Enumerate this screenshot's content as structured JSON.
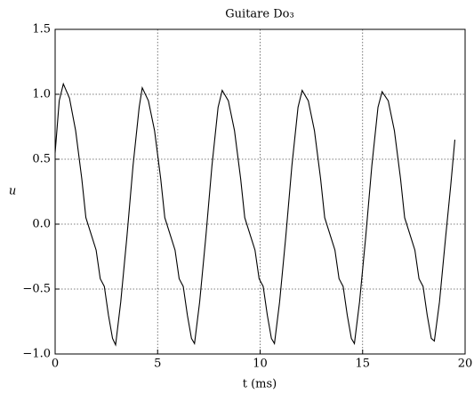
{
  "chart_data": {
    "type": "line",
    "title": "Guitare Do₃",
    "x_label": "t (ms)",
    "y_label": "u",
    "x": [
      0,
      0.2,
      0.4,
      0.7,
      1.0,
      1.3,
      1.5,
      1.7,
      2.0,
      2.2,
      2.4,
      2.6,
      2.8,
      2.95,
      3.2,
      3.5,
      3.8,
      4.1,
      4.25,
      4.55,
      4.85,
      5.15,
      5.35,
      5.55,
      5.85,
      6.05,
      6.25,
      6.45,
      6.65,
      6.8,
      7.05,
      7.35,
      7.65,
      7.95,
      8.15,
      8.45,
      8.75,
      9.05,
      9.25,
      9.45,
      9.75,
      9.95,
      10.15,
      10.35,
      10.55,
      10.7,
      10.95,
      11.25,
      11.55,
      11.85,
      12.05,
      12.35,
      12.65,
      12.95,
      13.15,
      13.35,
      13.65,
      13.85,
      14.05,
      14.25,
      14.45,
      14.6,
      14.85,
      15.15,
      15.45,
      15.75,
      15.95,
      16.25,
      16.55,
      16.85,
      17.05,
      17.25,
      17.55,
      17.75,
      17.95,
      18.15,
      18.35,
      18.5,
      18.75,
      19.05,
      19.3,
      19.5
    ],
    "series": [
      {
        "color": "#000000",
        "values": [
          0.55,
          0.95,
          1.08,
          0.97,
          0.72,
          0.35,
          0.05,
          -0.05,
          -0.2,
          -0.42,
          -0.48,
          -0.7,
          -0.88,
          -0.93,
          -0.6,
          -0.1,
          0.45,
          0.9,
          1.05,
          0.95,
          0.72,
          0.35,
          0.05,
          -0.05,
          -0.2,
          -0.42,
          -0.48,
          -0.7,
          -0.88,
          -0.92,
          -0.6,
          -0.1,
          0.45,
          0.9,
          1.03,
          0.95,
          0.72,
          0.35,
          0.05,
          -0.05,
          -0.2,
          -0.42,
          -0.48,
          -0.7,
          -0.88,
          -0.92,
          -0.6,
          -0.1,
          0.45,
          0.9,
          1.03,
          0.95,
          0.72,
          0.35,
          0.05,
          -0.05,
          -0.2,
          -0.42,
          -0.48,
          -0.7,
          -0.88,
          -0.92,
          -0.6,
          -0.1,
          0.45,
          0.9,
          1.02,
          0.95,
          0.72,
          0.35,
          0.05,
          -0.05,
          -0.2,
          -0.42,
          -0.48,
          -0.7,
          -0.88,
          -0.9,
          -0.6,
          -0.1,
          0.3,
          0.65
        ]
      }
    ],
    "xlim": [
      0,
      20
    ],
    "xticks": [
      0,
      5,
      10,
      15,
      20
    ],
    "ylim": [
      -1.0,
      1.5
    ],
    "yticks": [
      {
        "value": -1.0,
        "label": "−1.0"
      },
      {
        "value": -0.5,
        "label": "−0.5"
      },
      {
        "value": 0.0,
        "label": "0.0"
      },
      0.5,
      {
        "value": 1.0,
        "label": "1.0"
      },
      1.5
    ],
    "grid": true
  }
}
